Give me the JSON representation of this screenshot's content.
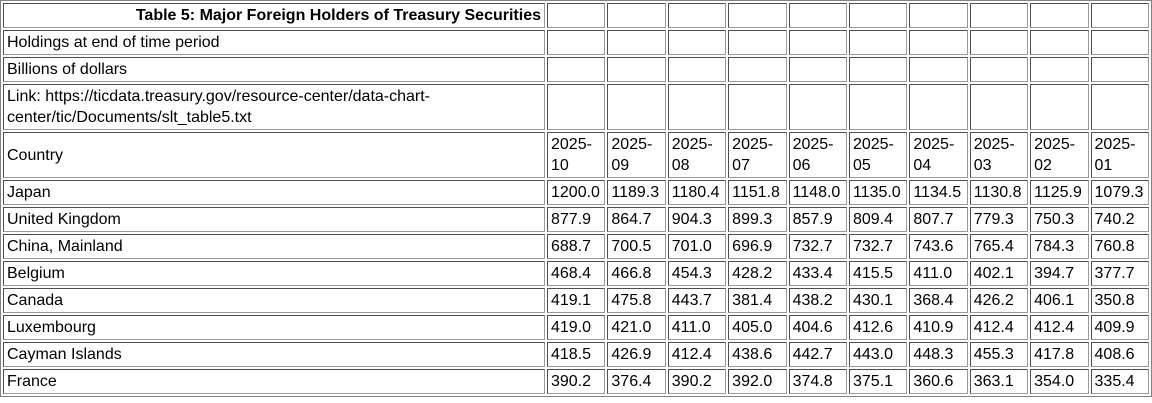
{
  "table": {
    "title": "Table 5: Major Foreign Holders of Treasury Securities",
    "meta": {
      "holdings_note": "Holdings at end of time period",
      "units_note": "Billions of dollars",
      "link_text": "Link: https://ticdata.treasury.gov/resource-center/data-chart-\ncenter/tic/Documents/slt_table5.txt"
    },
    "header": {
      "country_label": "Country",
      "periods": [
        "2025-10",
        "2025-09",
        "2025-08",
        "2025-07",
        "2025-06",
        "2025-05",
        "2025-04",
        "2025-03",
        "2025-02",
        "2025-01"
      ]
    },
    "rows": [
      {
        "country": "Japan",
        "values": [
          "1200.0",
          "1189.3",
          "1180.4",
          "1151.8",
          "1148.0",
          "1135.0",
          "1134.5",
          "1130.8",
          "1125.9",
          "1079.3"
        ]
      },
      {
        "country": "United Kingdom",
        "values": [
          "877.9",
          "864.7",
          "904.3",
          "899.3",
          "857.9",
          "809.4",
          "807.7",
          "779.3",
          "750.3",
          "740.2"
        ]
      },
      {
        "country": "China, Mainland",
        "values": [
          "688.7",
          "700.5",
          "701.0",
          "696.9",
          "732.7",
          "732.7",
          "743.6",
          "765.4",
          "784.3",
          "760.8"
        ]
      },
      {
        "country": "Belgium",
        "values": [
          "468.4",
          "466.8",
          "454.3",
          "428.2",
          "433.4",
          "415.5",
          "411.0",
          "402.1",
          "394.7",
          "377.7"
        ]
      },
      {
        "country": "Canada",
        "values": [
          "419.1",
          "475.8",
          "443.7",
          "381.4",
          "438.2",
          "430.1",
          "368.4",
          "426.2",
          "406.1",
          "350.8"
        ]
      },
      {
        "country": "Luxembourg",
        "values": [
          "419.0",
          "421.0",
          "411.0",
          "405.0",
          "404.6",
          "412.6",
          "410.9",
          "412.4",
          "412.4",
          "409.9"
        ]
      },
      {
        "country": "Cayman Islands",
        "values": [
          "418.5",
          "426.9",
          "412.4",
          "438.6",
          "442.7",
          "443.0",
          "448.3",
          "455.3",
          "417.8",
          "408.6"
        ]
      },
      {
        "country": "France",
        "values": [
          "390.2",
          "376.4",
          "390.2",
          "392.0",
          "374.8",
          "375.1",
          "360.6",
          "363.1",
          "354.0",
          "335.4"
        ]
      }
    ],
    "empty_columns": 10,
    "colors": {
      "cell_border_dark": "#4f4f4f",
      "cell_border_light": "#9a9a9a",
      "table_border": "#828282",
      "text": "#000000",
      "background": "#ffffff"
    }
  },
  "chart_data": {
    "type": "table",
    "title": "Table 5: Major Foreign Holders of Treasury Securities",
    "subtitle": [
      "Holdings at end of time period",
      "Billions of dollars"
    ],
    "link": "Link: https://ticdata.treasury.gov/resource-center/data-chart-center/tic/Documents/slt_table5.txt",
    "columns": [
      "Country",
      "2025-10",
      "2025-09",
      "2025-08",
      "2025-07",
      "2025-06",
      "2025-05",
      "2025-04",
      "2025-03",
      "2025-02",
      "2025-01"
    ],
    "rows": [
      [
        "Japan",
        1200.0,
        1189.3,
        1180.4,
        1151.8,
        1148.0,
        1135.0,
        1134.5,
        1130.8,
        1125.9,
        1079.3
      ],
      [
        "United Kingdom",
        877.9,
        864.7,
        904.3,
        899.3,
        857.9,
        809.4,
        807.7,
        779.3,
        750.3,
        740.2
      ],
      [
        "China, Mainland",
        688.7,
        700.5,
        701.0,
        696.9,
        732.7,
        732.7,
        743.6,
        765.4,
        784.3,
        760.8
      ],
      [
        "Belgium",
        468.4,
        466.8,
        454.3,
        428.2,
        433.4,
        415.5,
        411.0,
        402.1,
        394.7,
        377.7
      ],
      [
        "Canada",
        419.1,
        475.8,
        443.7,
        381.4,
        438.2,
        430.1,
        368.4,
        426.2,
        406.1,
        350.8
      ],
      [
        "Luxembourg",
        419.0,
        421.0,
        411.0,
        405.0,
        404.6,
        412.6,
        410.9,
        412.4,
        412.4,
        409.9
      ],
      [
        "Cayman Islands",
        418.5,
        426.9,
        412.4,
        438.6,
        442.7,
        443.0,
        448.3,
        455.3,
        417.8,
        408.6
      ],
      [
        "France",
        390.2,
        376.4,
        390.2,
        392.0,
        374.8,
        375.1,
        360.6,
        363.1,
        354.0,
        335.4
      ]
    ]
  }
}
